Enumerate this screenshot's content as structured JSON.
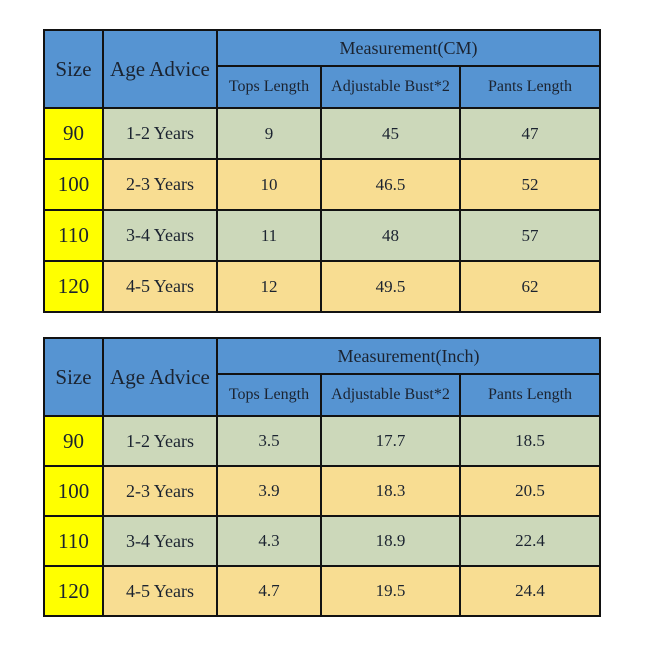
{
  "colors": {
    "header_blue": "#5694d2",
    "size_yellow": "#ffff00",
    "row_green": "#ccd8ba",
    "row_tan": "#f8dd92",
    "border": "#121212",
    "text": "#1b2330",
    "background": "#ffffff"
  },
  "chart_data": [
    {
      "type": "table",
      "title": "Measurement(CM)",
      "columns": [
        "Size",
        "Age Advice",
        "Tops Length",
        "Adjustable Bust*2",
        "Pants Length"
      ],
      "rows": [
        [
          "90",
          "1-2 Years",
          "9",
          "45",
          "47"
        ],
        [
          "100",
          "2-3 Years",
          "10",
          "46.5",
          "52"
        ],
        [
          "110",
          "3-4 Years",
          "11",
          "48",
          "57"
        ],
        [
          "120",
          "4-5 Years",
          "12",
          "49.5",
          "62"
        ]
      ]
    },
    {
      "type": "table",
      "title": "Measurement(Inch)",
      "columns": [
        "Size",
        "Age Advice",
        "Tops Length",
        "Adjustable Bust*2",
        "Pants Length"
      ],
      "rows": [
        [
          "90",
          "1-2 Years",
          "3.5",
          "17.7",
          "18.5"
        ],
        [
          "100",
          "2-3 Years",
          "3.9",
          "18.3",
          "20.5"
        ],
        [
          "110",
          "3-4 Years",
          "4.3",
          "18.9",
          "22.4"
        ],
        [
          "120",
          "4-5 Years",
          "4.7",
          "19.5",
          "24.4"
        ]
      ]
    }
  ]
}
